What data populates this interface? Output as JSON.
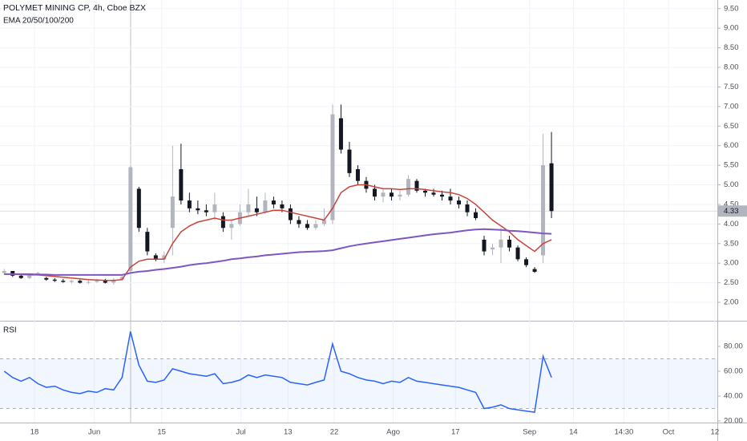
{
  "chart_data": {
    "type": "candlestick",
    "title": "POLYMET MINING CP, 4h, Cboe BZX",
    "indicator_label": "EMA 20/50/100/200",
    "rsi_label": "RSI",
    "x": [
      0,
      1,
      2,
      3,
      4,
      5,
      6,
      7,
      8,
      9,
      10,
      11,
      12,
      13,
      14,
      15,
      16,
      17,
      18,
      19,
      20,
      21,
      22,
      23,
      24,
      25,
      26,
      27,
      28,
      29,
      30,
      31,
      32,
      33,
      34,
      35,
      36,
      37,
      38,
      39,
      40,
      41,
      42,
      43,
      44,
      45,
      46,
      47,
      48,
      49,
      50,
      51,
      52,
      53,
      54,
      55,
      56,
      57,
      58,
      59,
      60,
      61,
      62,
      63,
      64,
      65
    ],
    "open": [
      2.75,
      2.8,
      2.68,
      2.62,
      2.7,
      2.62,
      2.58,
      2.55,
      2.52,
      2.55,
      2.5,
      2.52,
      2.55,
      2.5,
      2.58,
      2.8,
      4.9,
      3.8,
      3.2,
      3.1,
      3.9,
      5.4,
      4.6,
      4.4,
      4.35,
      4.3,
      4.2,
      3.9,
      4.0,
      4.3,
      4.4,
      4.3,
      4.6,
      4.5,
      4.4,
      4.1,
      4.0,
      3.9,
      4.0,
      4.1,
      6.7,
      5.9,
      5.4,
      5.1,
      4.9,
      4.7,
      4.8,
      4.7,
      4.75,
      5.1,
      4.85,
      4.8,
      4.75,
      4.7,
      4.6,
      4.5,
      4.3,
      3.6,
      3.35,
      3.4,
      3.6,
      3.4,
      3.1,
      2.85,
      3.2,
      5.55
    ],
    "high": [
      2.85,
      2.8,
      2.72,
      2.7,
      2.78,
      2.65,
      2.62,
      2.6,
      2.58,
      2.58,
      2.56,
      2.6,
      2.6,
      2.62,
      2.7,
      5.5,
      4.95,
      3.9,
      3.25,
      3.3,
      6.0,
      6.05,
      4.8,
      4.6,
      4.5,
      4.8,
      4.3,
      4.1,
      4.5,
      4.9,
      4.7,
      4.8,
      4.7,
      4.6,
      4.5,
      4.2,
      4.1,
      4.1,
      4.4,
      7.05,
      7.05,
      6.1,
      5.5,
      5.2,
      5.0,
      4.9,
      4.9,
      4.85,
      5.25,
      5.15,
      4.9,
      4.9,
      4.85,
      4.9,
      4.7,
      4.6,
      4.4,
      3.7,
      3.5,
      3.9,
      3.7,
      3.45,
      3.15,
      2.9,
      6.3,
      6.35
    ],
    "low": [
      2.7,
      2.65,
      2.6,
      2.6,
      2.68,
      2.55,
      2.52,
      2.5,
      2.48,
      2.48,
      2.46,
      2.5,
      2.48,
      2.45,
      2.55,
      2.75,
      3.8,
      3.2,
      3.05,
      3.0,
      3.2,
      4.5,
      4.3,
      4.25,
      4.2,
      4.1,
      3.8,
      3.6,
      3.95,
      4.2,
      4.2,
      4.25,
      4.4,
      4.3,
      4.0,
      3.9,
      3.85,
      3.85,
      3.95,
      4.0,
      5.8,
      5.2,
      5.0,
      4.8,
      4.6,
      4.55,
      4.6,
      4.6,
      4.7,
      4.8,
      4.7,
      4.7,
      4.6,
      4.5,
      4.4,
      4.2,
      4.1,
      3.2,
      3.2,
      3.0,
      3.3,
      3.05,
      2.9,
      2.75,
      3.0,
      4.15
    ],
    "close": [
      2.8,
      2.68,
      2.62,
      2.68,
      2.75,
      2.58,
      2.55,
      2.52,
      2.55,
      2.5,
      2.52,
      2.55,
      2.5,
      2.58,
      2.65,
      5.45,
      3.9,
      3.3,
      3.1,
      3.2,
      4.7,
      4.6,
      4.4,
      4.35,
      4.3,
      4.5,
      3.9,
      4.0,
      4.3,
      4.5,
      4.3,
      4.6,
      4.5,
      4.4,
      4.1,
      4.0,
      3.9,
      4.0,
      4.1,
      6.8,
      5.9,
      5.3,
      5.1,
      4.9,
      4.7,
      4.8,
      4.7,
      4.75,
      5.15,
      4.85,
      4.8,
      4.75,
      4.7,
      4.6,
      4.5,
      4.3,
      4.15,
      3.3,
      3.4,
      3.6,
      3.4,
      3.1,
      2.95,
      2.78,
      5.5,
      4.33
    ],
    "up_color": "#b2b5be",
    "down_color": "#131722",
    "series": [
      {
        "color": "#c8443a",
        "values": [
          2.72,
          2.72,
          2.71,
          2.7,
          2.7,
          2.68,
          2.66,
          2.64,
          2.62,
          2.6,
          2.58,
          2.57,
          2.56,
          2.56,
          2.58,
          2.9,
          3.05,
          3.1,
          3.1,
          3.1,
          3.5,
          3.8,
          3.95,
          4.05,
          4.1,
          4.15,
          4.1,
          4.1,
          4.15,
          4.2,
          4.25,
          4.3,
          4.35,
          4.35,
          4.3,
          4.25,
          4.2,
          4.15,
          4.1,
          4.4,
          4.8,
          4.95,
          5.0,
          5.0,
          4.95,
          4.9,
          4.9,
          4.88,
          4.9,
          4.9,
          4.88,
          4.85,
          4.82,
          4.8,
          4.75,
          4.65,
          4.5,
          4.3,
          4.1,
          3.95,
          3.8,
          3.6,
          3.45,
          3.3,
          3.5,
          3.6
        ]
      },
      {
        "color": "#7e57c2",
        "values": [
          2.72,
          2.72,
          2.72,
          2.72,
          2.71,
          2.71,
          2.7,
          2.7,
          2.7,
          2.7,
          2.7,
          2.7,
          2.7,
          2.7,
          2.7,
          2.75,
          2.78,
          2.8,
          2.83,
          2.85,
          2.88,
          2.91,
          2.95,
          2.98,
          3.0,
          3.03,
          3.06,
          3.1,
          3.12,
          3.15,
          3.17,
          3.2,
          3.22,
          3.24,
          3.26,
          3.28,
          3.29,
          3.3,
          3.31,
          3.33,
          3.38,
          3.43,
          3.47,
          3.5,
          3.53,
          3.56,
          3.59,
          3.62,
          3.65,
          3.68,
          3.71,
          3.74,
          3.76,
          3.78,
          3.81,
          3.84,
          3.86,
          3.87,
          3.86,
          3.85,
          3.83,
          3.82,
          3.8,
          3.78,
          3.76,
          3.75
        ]
      }
    ],
    "rsi": {
      "color": "#2962ff",
      "values": [
        60,
        55,
        52,
        55,
        50,
        47,
        48,
        45,
        43,
        42,
        44,
        43,
        46,
        45,
        55,
        92,
        65,
        52,
        51,
        53,
        62,
        60,
        58,
        57,
        56,
        58,
        50,
        51,
        53,
        57,
        55,
        57,
        56,
        55,
        51,
        50,
        49,
        51,
        53,
        82,
        60,
        58,
        55,
        53,
        52,
        50,
        52,
        51,
        55,
        52,
        51,
        50,
        49,
        48,
        47,
        45,
        43,
        30,
        31,
        33,
        30,
        29,
        28,
        27,
        72,
        55
      ],
      "bands": [
        30,
        70
      ],
      "ylim": [
        20,
        100
      ],
      "yticks": [
        {
          "value": 20,
          "label": "20.00"
        },
        {
          "value": 40,
          "label": "40.00"
        },
        {
          "value": 60,
          "label": "60.00"
        },
        {
          "value": 80,
          "label": "80.00"
        }
      ]
    },
    "last_price": {
      "value": 4.33,
      "label": "4.33"
    },
    "xlim": [
      -0.5,
      84.7
    ],
    "xticks": [
      {
        "value": 3.6,
        "label": "18"
      },
      {
        "value": 10.7,
        "label": "Jun"
      },
      {
        "value": 18.7,
        "label": "15"
      },
      {
        "value": 28.1,
        "label": "Jul"
      },
      {
        "value": 33.7,
        "label": "13"
      },
      {
        "value": 39.2,
        "label": "22"
      },
      {
        "value": 46.2,
        "label": "Ago"
      },
      {
        "value": 53.6,
        "label": "17"
      },
      {
        "value": 62.4,
        "label": "Sep"
      },
      {
        "value": 67.6,
        "label": "14"
      },
      {
        "value": 73.6,
        "label": "14:30"
      },
      {
        "value": 78.9,
        "label": "Oct"
      },
      {
        "value": 84.4,
        "label": "12"
      }
    ],
    "ylim": [
      1.53,
      9.72
    ],
    "yticks": [
      {
        "value": 2,
        "label": "2.00"
      },
      {
        "value": 2.5,
        "label": "2.50"
      },
      {
        "value": 3,
        "label": "3.00"
      },
      {
        "value": 3.5,
        "label": "3.50"
      },
      {
        "value": 4,
        "label": "4.00"
      },
      {
        "value": 4.5,
        "label": "4.50"
      },
      {
        "value": 5,
        "label": "5.00"
      },
      {
        "value": 5.5,
        "label": "5.50"
      },
      {
        "value": 6,
        "label": "6.00"
      },
      {
        "value": 6.5,
        "label": "6.50"
      },
      {
        "value": 7,
        "label": "7.00"
      },
      {
        "value": 7.5,
        "label": "7.50"
      },
      {
        "value": 8,
        "label": "8.00"
      },
      {
        "value": 8.5,
        "label": "8.50"
      },
      {
        "value": 9,
        "label": "9.00"
      },
      {
        "value": 9.5,
        "label": "9.50"
      }
    ]
  }
}
